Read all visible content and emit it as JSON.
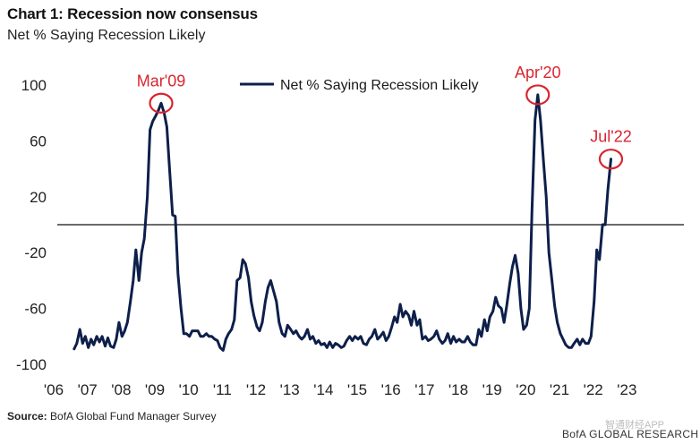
{
  "header": {
    "title": "Chart 1: Recession now consensus",
    "subtitle": "Net % Saying Recession Likely"
  },
  "footer": {
    "source_label": "Source:",
    "source_text": "BofA Global Fund Manager Survey",
    "brand": "BofA GLOBAL RESEARCH",
    "watermark": "智通财经APP"
  },
  "colors": {
    "line": "#0d1f4a",
    "annotation": "#d9252f",
    "zero_line": "#111111"
  },
  "chart_data": {
    "type": "line",
    "title": "Chart 1: Recession now consensus",
    "subtitle": "Net % Saying Recession Likely",
    "xlabel": "",
    "ylabel": "",
    "xlim": [
      2006.0,
      2024.0
    ],
    "ylim": [
      -100,
      100
    ],
    "x_ticks": [
      2006,
      2007,
      2008,
      2009,
      2010,
      2011,
      2012,
      2013,
      2014,
      2015,
      2016,
      2017,
      2018,
      2019,
      2020,
      2021,
      2022,
      2023
    ],
    "x_tick_labels": [
      "'06",
      "'07",
      "'08",
      "'09",
      "'10",
      "'11",
      "'12",
      "'13",
      "'14",
      "'15",
      "'16",
      "'17",
      "'18",
      "'19",
      "'20",
      "'21",
      "'22",
      "'23"
    ],
    "y_ticks": [
      100,
      60,
      20,
      -20,
      -60,
      -100
    ],
    "y_tick_labels": [
      "100",
      "60",
      "20",
      "-20",
      "-60",
      "-100"
    ],
    "reference_line": 0,
    "grid": false,
    "legend_position": "top-center",
    "series": [
      {
        "name": "Net % Saying Recession Likely",
        "points": [
          [
            2006.5,
            -89
          ],
          [
            2006.58,
            -85
          ],
          [
            2006.67,
            -75
          ],
          [
            2006.75,
            -85
          ],
          [
            2006.83,
            -80
          ],
          [
            2006.92,
            -88
          ],
          [
            2007.0,
            -82
          ],
          [
            2007.08,
            -86
          ],
          [
            2007.17,
            -80
          ],
          [
            2007.25,
            -84
          ],
          [
            2007.33,
            -80
          ],
          [
            2007.42,
            -87
          ],
          [
            2007.5,
            -81
          ],
          [
            2007.58,
            -87
          ],
          [
            2007.67,
            -88
          ],
          [
            2007.75,
            -82
          ],
          [
            2007.83,
            -70
          ],
          [
            2007.92,
            -80
          ],
          [
            2008.0,
            -76
          ],
          [
            2008.08,
            -70
          ],
          [
            2008.17,
            -55
          ],
          [
            2008.25,
            -40
          ],
          [
            2008.33,
            -18
          ],
          [
            2008.42,
            -40
          ],
          [
            2008.5,
            -20
          ],
          [
            2008.58,
            -10
          ],
          [
            2008.67,
            20
          ],
          [
            2008.75,
            68
          ],
          [
            2008.83,
            74
          ],
          [
            2008.92,
            78
          ],
          [
            2009.0,
            82
          ],
          [
            2009.08,
            87
          ],
          [
            2009.17,
            80
          ],
          [
            2009.25,
            70
          ],
          [
            2009.33,
            40
          ],
          [
            2009.42,
            7
          ],
          [
            2009.5,
            6
          ],
          [
            2009.58,
            -35
          ],
          [
            2009.67,
            -60
          ],
          [
            2009.75,
            -78
          ],
          [
            2009.83,
            -78
          ],
          [
            2009.92,
            -80
          ],
          [
            2010.0,
            -76
          ],
          [
            2010.08,
            -76
          ],
          [
            2010.17,
            -76
          ],
          [
            2010.25,
            -80
          ],
          [
            2010.33,
            -80
          ],
          [
            2010.42,
            -78
          ],
          [
            2010.5,
            -80
          ],
          [
            2010.58,
            -80
          ],
          [
            2010.67,
            -82
          ],
          [
            2010.75,
            -83
          ],
          [
            2010.83,
            -88
          ],
          [
            2010.92,
            -90
          ],
          [
            2011.0,
            -82
          ],
          [
            2011.08,
            -78
          ],
          [
            2011.17,
            -75
          ],
          [
            2011.25,
            -68
          ],
          [
            2011.33,
            -40
          ],
          [
            2011.42,
            -38
          ],
          [
            2011.5,
            -25
          ],
          [
            2011.58,
            -28
          ],
          [
            2011.67,
            -38
          ],
          [
            2011.75,
            -55
          ],
          [
            2011.83,
            -65
          ],
          [
            2011.92,
            -73
          ],
          [
            2012.0,
            -76
          ],
          [
            2012.08,
            -70
          ],
          [
            2012.17,
            -55
          ],
          [
            2012.25,
            -45
          ],
          [
            2012.33,
            -40
          ],
          [
            2012.42,
            -48
          ],
          [
            2012.5,
            -55
          ],
          [
            2012.58,
            -70
          ],
          [
            2012.67,
            -78
          ],
          [
            2012.75,
            -80
          ],
          [
            2012.83,
            -72
          ],
          [
            2012.92,
            -75
          ],
          [
            2013.0,
            -78
          ],
          [
            2013.08,
            -76
          ],
          [
            2013.17,
            -80
          ],
          [
            2013.25,
            -82
          ],
          [
            2013.33,
            -80
          ],
          [
            2013.42,
            -75
          ],
          [
            2013.5,
            -82
          ],
          [
            2013.58,
            -80
          ],
          [
            2013.67,
            -85
          ],
          [
            2013.75,
            -83
          ],
          [
            2013.83,
            -86
          ],
          [
            2013.92,
            -85
          ],
          [
            2014.0,
            -88
          ],
          [
            2014.08,
            -84
          ],
          [
            2014.17,
            -88
          ],
          [
            2014.25,
            -85
          ],
          [
            2014.33,
            -86
          ],
          [
            2014.42,
            -88
          ],
          [
            2014.5,
            -87
          ],
          [
            2014.58,
            -83
          ],
          [
            2014.67,
            -80
          ],
          [
            2014.75,
            -83
          ],
          [
            2014.83,
            -80
          ],
          [
            2014.92,
            -82
          ],
          [
            2015.0,
            -80
          ],
          [
            2015.08,
            -85
          ],
          [
            2015.17,
            -86
          ],
          [
            2015.25,
            -82
          ],
          [
            2015.33,
            -80
          ],
          [
            2015.42,
            -75
          ],
          [
            2015.5,
            -82
          ],
          [
            2015.58,
            -80
          ],
          [
            2015.67,
            -77
          ],
          [
            2015.75,
            -83
          ],
          [
            2015.83,
            -80
          ],
          [
            2015.92,
            -73
          ],
          [
            2016.0,
            -66
          ],
          [
            2016.08,
            -70
          ],
          [
            2016.17,
            -57
          ],
          [
            2016.25,
            -66
          ],
          [
            2016.33,
            -62
          ],
          [
            2016.42,
            -65
          ],
          [
            2016.5,
            -72
          ],
          [
            2016.58,
            -62
          ],
          [
            2016.67,
            -72
          ],
          [
            2016.75,
            -68
          ],
          [
            2016.83,
            -82
          ],
          [
            2016.92,
            -80
          ],
          [
            2017.0,
            -83
          ],
          [
            2017.08,
            -82
          ],
          [
            2017.17,
            -80
          ],
          [
            2017.25,
            -76
          ],
          [
            2017.33,
            -82
          ],
          [
            2017.42,
            -85
          ],
          [
            2017.5,
            -83
          ],
          [
            2017.58,
            -78
          ],
          [
            2017.67,
            -85
          ],
          [
            2017.75,
            -80
          ],
          [
            2017.83,
            -84
          ],
          [
            2017.92,
            -82
          ],
          [
            2018.0,
            -84
          ],
          [
            2018.08,
            -84
          ],
          [
            2018.17,
            -80
          ],
          [
            2018.25,
            -84
          ],
          [
            2018.33,
            -86
          ],
          [
            2018.42,
            -86
          ],
          [
            2018.5,
            -75
          ],
          [
            2018.58,
            -80
          ],
          [
            2018.67,
            -68
          ],
          [
            2018.75,
            -76
          ],
          [
            2018.83,
            -66
          ],
          [
            2018.92,
            -62
          ],
          [
            2019.0,
            -52
          ],
          [
            2019.08,
            -58
          ],
          [
            2019.17,
            -60
          ],
          [
            2019.25,
            -70
          ],
          [
            2019.33,
            -58
          ],
          [
            2019.42,
            -42
          ],
          [
            2019.5,
            -30
          ],
          [
            2019.58,
            -22
          ],
          [
            2019.67,
            -35
          ],
          [
            2019.75,
            -60
          ],
          [
            2019.83,
            -75
          ],
          [
            2019.92,
            -72
          ],
          [
            2020.0,
            -60
          ],
          [
            2020.08,
            10
          ],
          [
            2020.17,
            75
          ],
          [
            2020.25,
            93
          ],
          [
            2020.33,
            75
          ],
          [
            2020.42,
            45
          ],
          [
            2020.5,
            20
          ],
          [
            2020.58,
            -20
          ],
          [
            2020.67,
            -40
          ],
          [
            2020.75,
            -58
          ],
          [
            2020.83,
            -70
          ],
          [
            2020.92,
            -78
          ],
          [
            2021.0,
            -82
          ],
          [
            2021.08,
            -86
          ],
          [
            2021.17,
            -88
          ],
          [
            2021.25,
            -88
          ],
          [
            2021.33,
            -85
          ],
          [
            2021.42,
            -82
          ],
          [
            2021.5,
            -86
          ],
          [
            2021.58,
            -82
          ],
          [
            2021.67,
            -85
          ],
          [
            2021.75,
            -85
          ],
          [
            2021.83,
            -80
          ],
          [
            2021.92,
            -55
          ],
          [
            2022.0,
            -18
          ],
          [
            2022.08,
            -25
          ],
          [
            2022.17,
            0
          ],
          [
            2022.25,
            0
          ],
          [
            2022.33,
            25
          ],
          [
            2022.42,
            47
          ]
        ]
      }
    ],
    "annotations": [
      {
        "label": "Mar'09",
        "x": 2009.08,
        "y": 87
      },
      {
        "label": "Apr'20",
        "x": 2020.25,
        "y": 93
      },
      {
        "label": "Jul'22",
        "x": 2022.42,
        "y": 47
      }
    ]
  }
}
